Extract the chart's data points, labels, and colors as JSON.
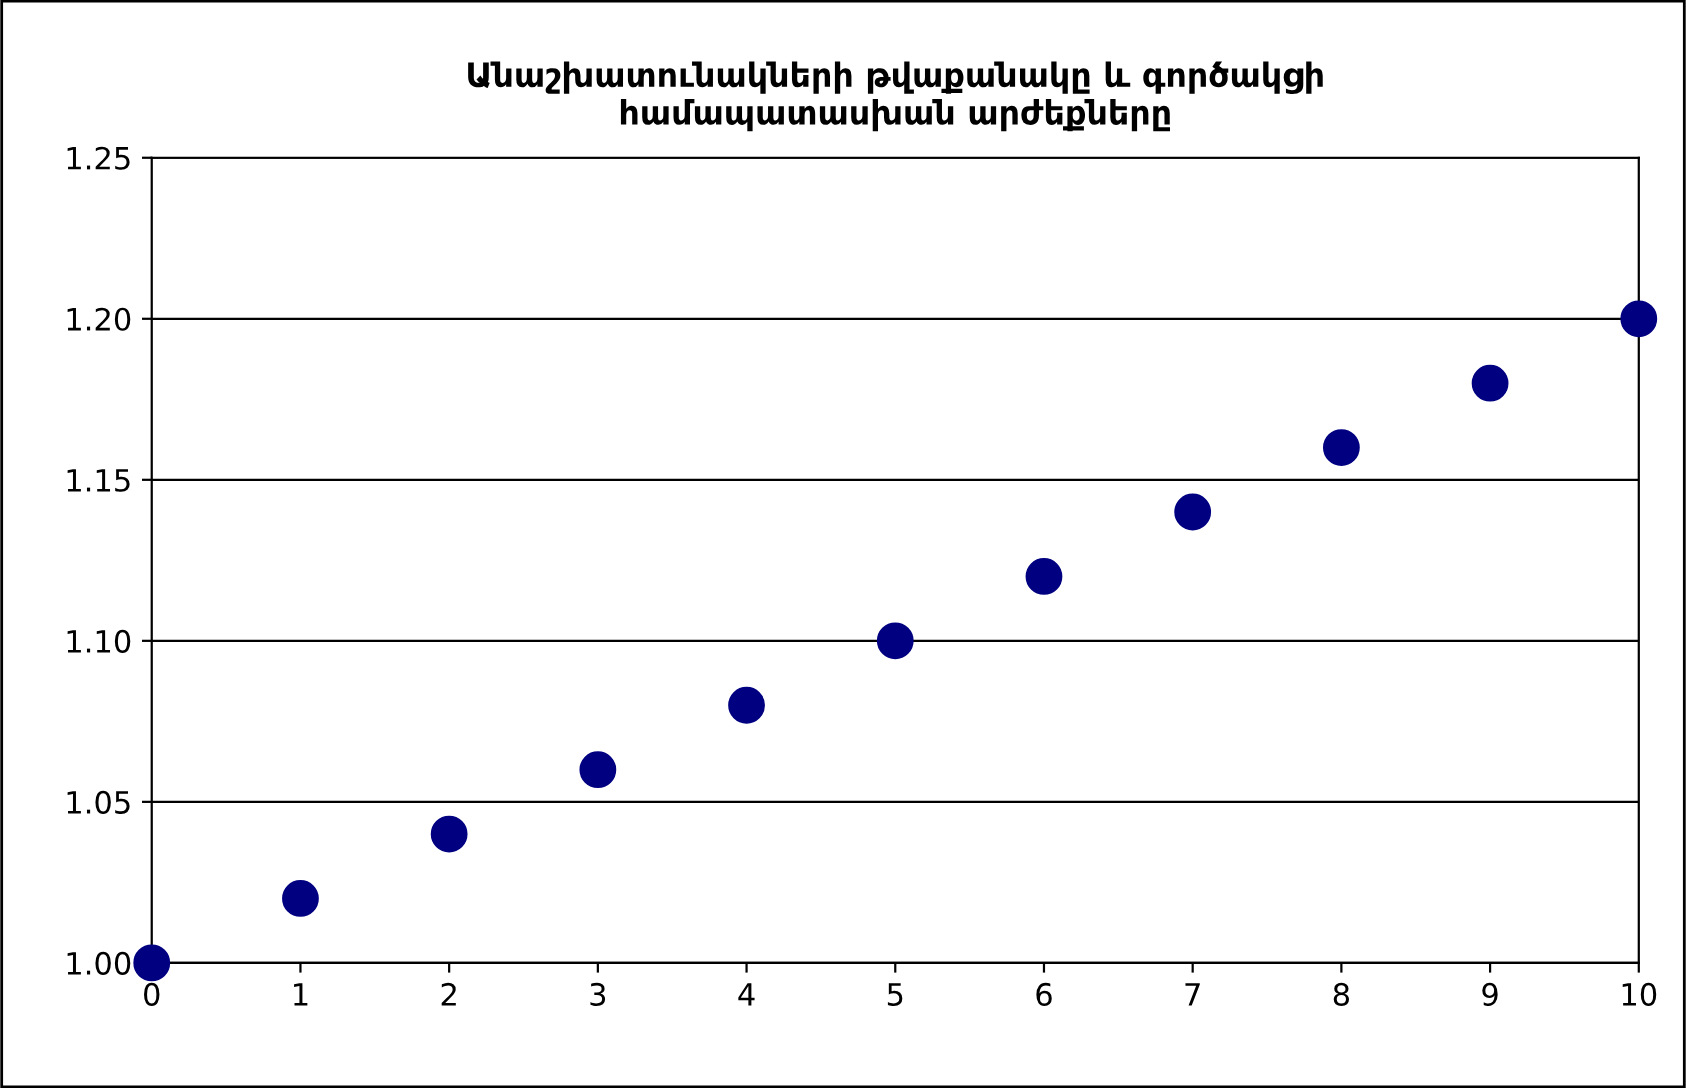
{
  "chart_data": {
    "type": "scatter",
    "title": "Անաշխատունակների թվաքանակը և գործակցի\nհամապատասխան արժեքները",
    "x": [
      0,
      1,
      2,
      3,
      4,
      5,
      6,
      7,
      8,
      9,
      10
    ],
    "series": [
      {
        "color": "#000080",
        "values": [
          1.0,
          1.02,
          1.04,
          1.06,
          1.08,
          1.1,
          1.12,
          1.14,
          1.16,
          1.18,
          1.2
        ]
      }
    ],
    "xlim": [
      0,
      10
    ],
    "xticks": [
      0,
      1,
      2,
      3,
      4,
      5,
      6,
      7,
      8,
      9,
      10
    ],
    "ylim": [
      1.0,
      1.25
    ],
    "yticks": [
      {
        "value": 1.0,
        "label": "1.00"
      },
      {
        "value": 1.05,
        "label": "1.05"
      },
      {
        "value": 1.1,
        "label": "1.10"
      },
      {
        "value": 1.15,
        "label": "1.15"
      },
      {
        "value": 1.2,
        "label": "1.20"
      },
      {
        "value": 1.25,
        "label": "1.25"
      }
    ],
    "grid": "y",
    "marker": "circle"
  }
}
